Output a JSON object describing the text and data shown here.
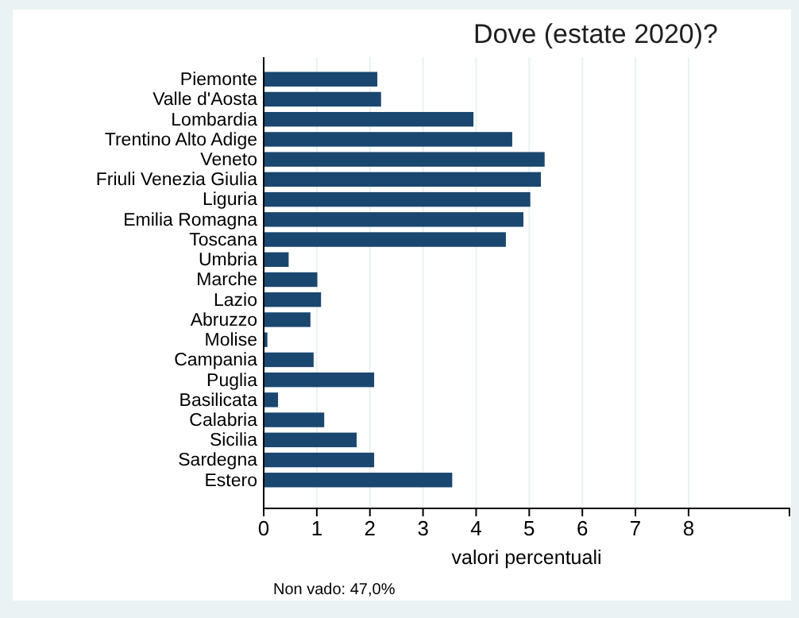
{
  "chart_data": {
    "type": "bar",
    "orientation": "horizontal",
    "title": "Dove (estate 2020)?",
    "xlabel": "valori percentuali",
    "categories": [
      "Piemonte",
      "Valle d'Aosta",
      "Lombardia",
      "Trentino Alto Adige",
      "Veneto",
      "Friuli Venezia Giulia",
      "Liguria",
      "Emilia Romagna",
      "Toscana",
      "Umbria",
      "Marche",
      "Lazio",
      "Abruzzo",
      "Molise",
      "Campania",
      "Puglia",
      "Basilicata",
      "Calabria",
      "Sicilia",
      "Sardegna",
      "Estero"
    ],
    "values": [
      2.14,
      2.21,
      3.95,
      4.68,
      5.29,
      5.22,
      5.02,
      4.89,
      4.56,
      0.47,
      1.01,
      1.08,
      0.88,
      0.07,
      0.94,
      2.08,
      0.27,
      1.14,
      1.75,
      2.08,
      3.55
    ],
    "color": "#1a476f",
    "xlim": [
      0,
      9.9
    ],
    "xticks": [
      0,
      1,
      2,
      3,
      4,
      5,
      6,
      7,
      8
    ],
    "grid": "x",
    "annotations": [
      "Non vado: 47,0%"
    ]
  }
}
